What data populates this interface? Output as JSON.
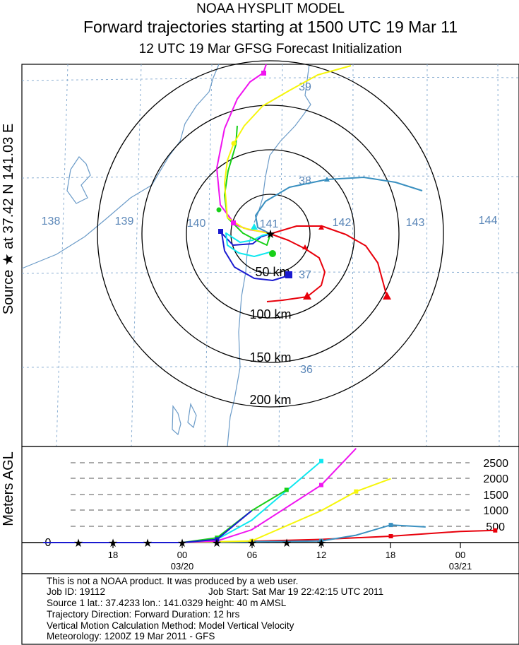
{
  "header": {
    "line1": "NOAA HYSPLIT MODEL",
    "line2": "Forward trajectories starting at 1500 UTC 19 Mar 11",
    "line3": "12 UTC 19 Mar    GFSG  Forecast Initialization"
  },
  "side_label": "Source ★ at   37.42 N   141.03 E",
  "map": {
    "longitude_labels": [
      "138",
      "139",
      "140",
      "141",
      "142",
      "143",
      "144"
    ],
    "latitude_labels": [
      "39",
      "38",
      "37",
      "36"
    ],
    "range_rings": [
      "50 km",
      "100 km",
      "150 km",
      "200 km"
    ]
  },
  "vertical": {
    "ylabel": "Meters AGL",
    "zero_label": "0",
    "levels": [
      "2500",
      "2000",
      "1500",
      "1000",
      "500"
    ],
    "time_ticks": [
      "18",
      "00",
      "06",
      "12",
      "18",
      "00"
    ],
    "date_labels": [
      "03/20",
      "03/21"
    ]
  },
  "footer": {
    "line1": "This is not a NOAA product. It was produced by a web user.",
    "job_id": "Job ID: 19112",
    "job_start": "Job Start: Sat Mar 19 22:42:15 UTC 2011",
    "source": "Source 1      lat.: 37.4233    lon.: 141.0329      height: 40 m AMSL",
    "direction": "Trajectory Direction: Forward        Duration: 12 hrs",
    "vertical_method": "Vertical Motion Calculation Method:        Model Vertical Velocity",
    "meteorology": "Meteorology: 1200Z 19 Mar 2011 - GFS"
  },
  "colors": {
    "coast": "#6b9bc8",
    "grid": "#8aaed2",
    "red": "#e8000b",
    "blue": "#1a1ad0",
    "green": "#18d018",
    "cyan": "#10e8f0",
    "magenta": "#f014f0",
    "yellow": "#f6f60b",
    "steel": "#3a90c0"
  },
  "chart_data": {
    "type": "line",
    "title": "Forward trajectories starting at 1500 UTC 19 Mar 11",
    "ylabel": "Meters AGL",
    "y_ticks": [
      500,
      1000,
      1500,
      2000,
      2500
    ],
    "x_ticks": [
      "18",
      "00",
      "06",
      "12",
      "18",
      "00"
    ],
    "source": {
      "lat": 37.4233,
      "lon": 141.0329,
      "height_m": 40
    },
    "series": [
      {
        "color": "red",
        "height_agl": [
          [
            -12,
            0
          ],
          [
            0,
            0
          ],
          [
            6,
            40
          ],
          [
            12,
            100
          ],
          [
            18,
            200
          ],
          [
            24,
            350
          ],
          [
            27,
            380
          ]
        ]
      },
      {
        "color": "steel",
        "height_agl": [
          [
            -12,
            0
          ],
          [
            0,
            0
          ],
          [
            12,
            50
          ],
          [
            15,
            230
          ],
          [
            18,
            550
          ],
          [
            21,
            490
          ]
        ]
      },
      {
        "color": "yellow",
        "height_agl": [
          [
            -12,
            0
          ],
          [
            0,
            0
          ],
          [
            6,
            50
          ],
          [
            12,
            1000
          ],
          [
            15,
            1600
          ],
          [
            18,
            2000
          ]
        ]
      },
      {
        "color": "magenta",
        "height_agl": [
          [
            -12,
            0
          ],
          [
            0,
            0
          ],
          [
            3,
            50
          ],
          [
            6,
            400
          ],
          [
            12,
            1800
          ],
          [
            15,
            2950
          ]
        ]
      },
      {
        "color": "cyan",
        "height_agl": [
          [
            -12,
            0
          ],
          [
            0,
            0
          ],
          [
            3,
            100
          ],
          [
            6,
            700
          ],
          [
            12,
            2550
          ]
        ]
      },
      {
        "color": "green",
        "height_agl": [
          [
            -12,
            0
          ],
          [
            0,
            0
          ],
          [
            3,
            150
          ],
          [
            6,
            1000
          ],
          [
            9,
            1650
          ]
        ]
      },
      {
        "color": "blue",
        "height_agl": [
          [
            -12,
            0
          ],
          [
            0,
            0
          ],
          [
            3,
            100
          ],
          [
            6,
            1000
          ]
        ]
      }
    ]
  }
}
